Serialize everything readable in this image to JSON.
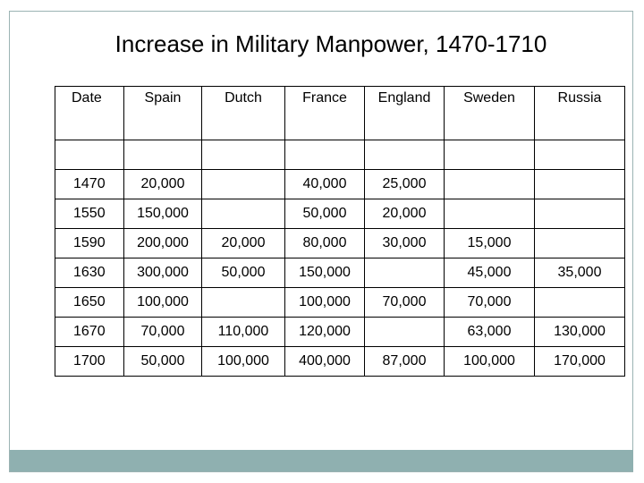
{
  "slide": {
    "title": "Increase in Military Manpower, 1470-1710"
  },
  "table": {
    "headers": [
      "Date",
      "Spain",
      "Dutch",
      "France",
      "England",
      "Sweden",
      "Russia"
    ],
    "rows": [
      [
        "1470",
        "20,000",
        "",
        "40,000",
        "25,000",
        "",
        ""
      ],
      [
        "1550",
        "150,000",
        "",
        "50,000",
        "20,000",
        "",
        ""
      ],
      [
        "1590",
        "200,000",
        "20,000",
        "80,000",
        "30,000",
        "15,000",
        ""
      ],
      [
        "1630",
        "300,000",
        "50,000",
        "150,000",
        "",
        "45,000",
        "35,000"
      ],
      [
        "1650",
        "100,000",
        "",
        "100,000",
        "70,000",
        "70,000",
        ""
      ],
      [
        "1670",
        "70,000",
        "110,000",
        "120,000",
        "",
        "63,000",
        "130,000"
      ],
      [
        "1700",
        "50,000",
        "100,000",
        "400,000",
        "87,000",
        "100,000",
        "170,000"
      ]
    ]
  },
  "colors": {
    "band": "#8fb0b0",
    "frame": "#9bb3b3"
  }
}
